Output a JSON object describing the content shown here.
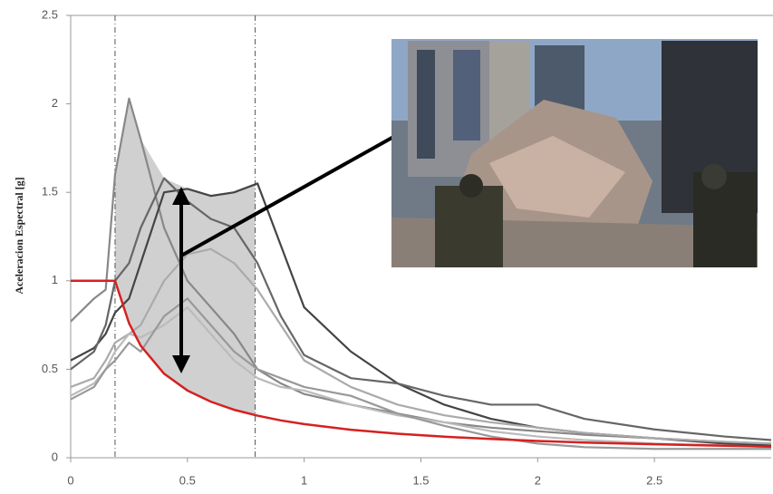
{
  "chart_data": {
    "type": "line",
    "y_label": "Aceleracion Espectral [g]",
    "x": [
      0,
      0.1,
      0.15,
      0.19,
      0.25,
      0.3,
      0.4,
      0.5,
      0.6,
      0.7,
      0.8,
      0.9,
      1.0,
      1.2,
      1.4,
      1.6,
      1.8,
      2.0,
      2.2,
      2.5,
      2.8,
      3.0
    ],
    "series": [
      {
        "color": "#888888",
        "values": [
          0.77,
          0.9,
          0.95,
          1.6,
          2.03,
          1.8,
          1.3,
          1.0,
          0.85,
          0.7,
          0.5,
          0.42,
          0.36,
          0.3,
          0.25,
          0.2,
          0.17,
          0.15,
          0.13,
          0.11,
          0.09,
          0.08
        ]
      },
      {
        "color": "#444444",
        "values": [
          0.55,
          0.62,
          0.7,
          0.82,
          0.9,
          1.1,
          1.5,
          1.52,
          1.48,
          1.5,
          1.55,
          1.2,
          0.85,
          0.6,
          0.42,
          0.3,
          0.22,
          0.17,
          0.14,
          0.11,
          0.08,
          0.07
        ]
      },
      {
        "color": "#666666",
        "values": [
          0.5,
          0.6,
          0.75,
          1.0,
          1.1,
          1.3,
          1.58,
          1.45,
          1.35,
          1.3,
          1.1,
          0.8,
          0.58,
          0.45,
          0.42,
          0.35,
          0.3,
          0.3,
          0.22,
          0.16,
          0.12,
          0.1
        ]
      },
      {
        "color": "#aaaaaa",
        "values": [
          0.4,
          0.45,
          0.55,
          0.65,
          0.7,
          0.75,
          1.0,
          1.15,
          1.18,
          1.1,
          0.95,
          0.75,
          0.55,
          0.4,
          0.3,
          0.24,
          0.2,
          0.17,
          0.14,
          0.11,
          0.09,
          0.08
        ]
      },
      {
        "color": "#bbbbbb",
        "values": [
          0.35,
          0.42,
          0.5,
          0.6,
          0.7,
          0.68,
          0.75,
          0.85,
          0.7,
          0.55,
          0.45,
          0.4,
          0.38,
          0.3,
          0.24,
          0.2,
          0.15,
          0.12,
          0.1,
          0.08,
          0.07,
          0.06
        ]
      },
      {
        "color": "#999999",
        "values": [
          0.33,
          0.4,
          0.5,
          0.55,
          0.65,
          0.6,
          0.8,
          0.9,
          0.75,
          0.6,
          0.5,
          0.45,
          0.4,
          0.35,
          0.25,
          0.18,
          0.12,
          0.08,
          0.06,
          0.05,
          0.05,
          0.05
        ]
      },
      {
        "color": "#d62020",
        "values": [
          1,
          1,
          1,
          1,
          0.76,
          0.633,
          0.475,
          0.38,
          0.317,
          0.271,
          0.238,
          0.211,
          0.19,
          0.158,
          0.136,
          0.119,
          0.106,
          0.095,
          0.086,
          0.076,
          0.068,
          0.063
        ]
      }
    ],
    "vlines": [
      0.19,
      0.79
    ],
    "xlim": [
      0,
      3
    ],
    "xticks": [
      0,
      0.5,
      1,
      1.5,
      2,
      2.5
    ],
    "ylim": [
      0,
      2.5
    ],
    "yticks": [
      0,
      0.5,
      1,
      1.5,
      2,
      2.5
    ]
  }
}
